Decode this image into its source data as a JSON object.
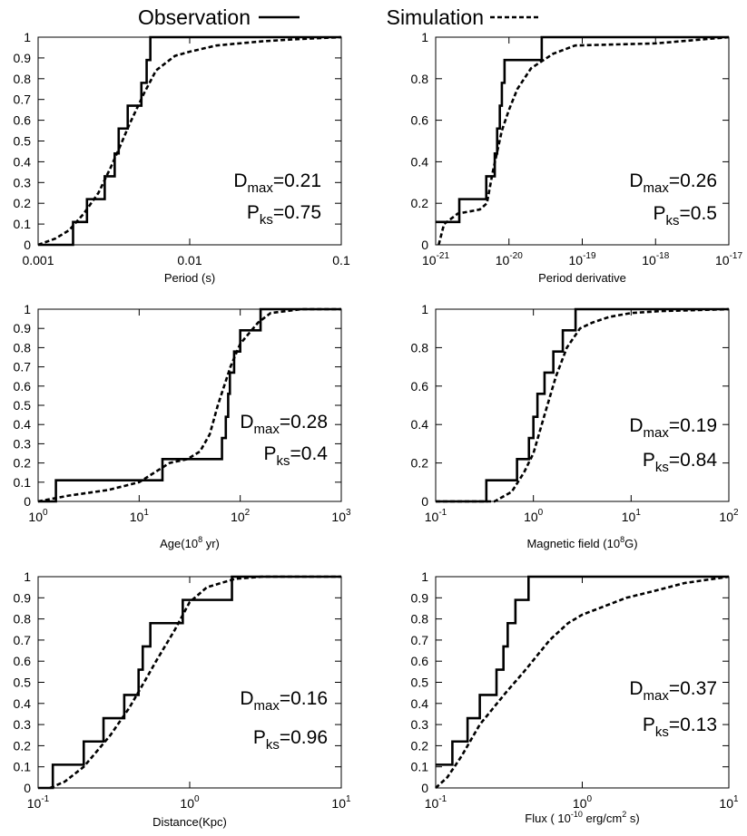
{
  "chart_data": [
    {
      "type": "line",
      "log_x": true,
      "xlabel": [
        {
          "text": "Period (s)"
        }
      ],
      "xlim": [
        0.001,
        0.1
      ],
      "xticks": [
        0.001,
        0.01,
        0.1
      ],
      "ylim": [
        0,
        1
      ],
      "yticks": [
        0,
        0.1,
        0.2,
        0.3,
        0.4,
        0.5,
        0.6,
        0.7,
        0.8,
        0.9,
        1
      ],
      "series": [
        {
          "name": "Observation",
          "style": "step",
          "dashed": false,
          "color": "#000000",
          "x": [
            0.001,
            0.0017,
            0.0021,
            0.00275,
            0.0032,
            0.0034,
            0.0039,
            0.0048,
            0.0052,
            0.0055,
            0.1
          ],
          "values": [
            0,
            0.11,
            0.22,
            0.33,
            0.44,
            0.56,
            0.67,
            0.78,
            0.89,
            1,
            1
          ]
        },
        {
          "name": "Simulation",
          "style": "line",
          "dashed": true,
          "color": "#000000",
          "x": [
            0.001,
            0.0013,
            0.0016,
            0.002,
            0.0025,
            0.003,
            0.0035,
            0.004,
            0.005,
            0.006,
            0.008,
            0.01,
            0.015,
            0.03,
            0.05,
            0.1
          ],
          "values": [
            0,
            0.03,
            0.07,
            0.15,
            0.25,
            0.37,
            0.48,
            0.58,
            0.73,
            0.84,
            0.91,
            0.93,
            0.96,
            0.98,
            0.99,
            1
          ]
        }
      ],
      "annotations": [
        {
          "symbol": "D",
          "subscript": "max",
          "text": "=0.21"
        },
        {
          "symbol": "P",
          "subscript": "ks",
          "text": "=0.75"
        }
      ]
    },
    {
      "type": "line",
      "log_x": true,
      "xlabel": [
        {
          "text": "Period derivative"
        }
      ],
      "xlim": [
        1e-21,
        1e-17
      ],
      "xticks": [
        {
          "value": 1e-21,
          "label": "10",
          "exponent": "-21"
        },
        {
          "value": 1e-20,
          "label": "10",
          "exponent": "-20"
        },
        {
          "value": 1e-19,
          "label": "10",
          "exponent": "-19"
        },
        {
          "value": 1e-18,
          "label": "10",
          "exponent": "-18"
        },
        {
          "value": 1e-17,
          "label": "10",
          "exponent": "-17"
        }
      ],
      "ylim": [
        0,
        1
      ],
      "yticks": [
        0,
        0.2,
        0.4,
        0.6,
        0.8,
        1
      ],
      "series": [
        {
          "name": "Observation",
          "style": "step",
          "dashed": false,
          "color": "#000000",
          "x": [
            1e-21,
            2.1e-21,
            4.9e-21,
            6.4e-21,
            6.9e-21,
            7.5e-21,
            8e-21,
            8.7e-21,
            2.8e-20,
            1e-17
          ],
          "values": [
            0.11,
            0.22,
            0.33,
            0.44,
            0.56,
            0.67,
            0.78,
            0.89,
            1,
            1
          ]
        },
        {
          "name": "Simulation",
          "style": "line",
          "dashed": true,
          "color": "#000000",
          "x": [
            1.1e-21,
            1.3e-21,
            2e-21,
            4e-21,
            5e-21,
            6e-21,
            8e-21,
            1e-20,
            1.3e-20,
            2e-20,
            4e-20,
            8e-20,
            1e-18,
            1e-17
          ],
          "values": [
            0,
            0.1,
            0.15,
            0.17,
            0.2,
            0.35,
            0.55,
            0.65,
            0.75,
            0.85,
            0.92,
            0.96,
            0.97,
            1
          ]
        }
      ],
      "annotations": [
        {
          "symbol": "D",
          "subscript": "max",
          "text": "=0.26"
        },
        {
          "symbol": "P",
          "subscript": "ks",
          "text": "=0.5"
        }
      ]
    },
    {
      "type": "line",
      "log_x": true,
      "xlabel": [
        {
          "text": "Age(10"
        },
        {
          "text": "8",
          "sup": true
        },
        {
          "text": " yr)"
        }
      ],
      "xlim": [
        1,
        1000
      ],
      "xticks": [
        {
          "value": 1,
          "label": "10",
          "exponent": "0"
        },
        {
          "value": 10,
          "label": "10",
          "exponent": "1"
        },
        {
          "value": 100,
          "label": "10",
          "exponent": "2"
        },
        {
          "value": 1000,
          "label": "10",
          "exponent": "3"
        }
      ],
      "ylim": [
        0,
        1
      ],
      "yticks": [
        0,
        0.1,
        0.2,
        0.3,
        0.4,
        0.5,
        0.6,
        0.7,
        0.8,
        0.9,
        1
      ],
      "series": [
        {
          "name": "Observation",
          "style": "step",
          "dashed": false,
          "color": "#000000",
          "x": [
            1,
            1.5,
            17,
            66,
            72,
            76,
            79,
            87,
            100,
            159,
            1000
          ],
          "values": [
            0,
            0.11,
            0.22,
            0.33,
            0.44,
            0.56,
            0.67,
            0.78,
            0.89,
            1,
            1
          ]
        },
        {
          "name": "Simulation",
          "style": "line",
          "dashed": true,
          "color": "#000000",
          "x": [
            1,
            2,
            5,
            10,
            20,
            30,
            40,
            50,
            60,
            80,
            100,
            150,
            200,
            400,
            1000
          ],
          "values": [
            0,
            0.03,
            0.06,
            0.1,
            0.2,
            0.22,
            0.26,
            0.35,
            0.5,
            0.7,
            0.82,
            0.93,
            0.98,
            1,
            1
          ]
        }
      ],
      "annotations": [
        {
          "symbol": "D",
          "subscript": "max",
          "text": "=0.28"
        },
        {
          "symbol": "P",
          "subscript": "ks",
          "text": "=0.4"
        }
      ]
    },
    {
      "type": "line",
      "log_x": true,
      "xlabel": [
        {
          "text": "Magnetic field (10"
        },
        {
          "text": "8",
          "sup": true
        },
        {
          "text": "G)"
        }
      ],
      "xlim": [
        0.1,
        100
      ],
      "xticks": [
        {
          "value": 0.1,
          "label": "10",
          "exponent": "-1"
        },
        {
          "value": 1,
          "label": "10",
          "exponent": "0"
        },
        {
          "value": 10,
          "label": "10",
          "exponent": "1"
        },
        {
          "value": 100,
          "label": "10",
          "exponent": "2"
        }
      ],
      "ylim": [
        0,
        1
      ],
      "yticks": [
        0,
        0.2,
        0.4,
        0.6,
        0.8,
        1
      ],
      "series": [
        {
          "name": "Observation",
          "style": "step",
          "dashed": false,
          "color": "#000000",
          "x": [
            0.1,
            0.33,
            0.68,
            0.9,
            1.0,
            1.1,
            1.3,
            1.6,
            2.0,
            2.7,
            100
          ],
          "values": [
            0,
            0.11,
            0.22,
            0.33,
            0.44,
            0.56,
            0.67,
            0.78,
            0.89,
            1,
            1
          ]
        },
        {
          "name": "Simulation",
          "style": "line",
          "dashed": true,
          "color": "#000000",
          "x": [
            0.1,
            0.4,
            0.6,
            0.8,
            1.0,
            1.3,
            1.7,
            2.2,
            3,
            4,
            6,
            10,
            20,
            100
          ],
          "values": [
            0,
            0,
            0.05,
            0.15,
            0.25,
            0.45,
            0.65,
            0.8,
            0.9,
            0.93,
            0.96,
            0.98,
            0.99,
            1
          ]
        }
      ],
      "annotations": [
        {
          "symbol": "D",
          "subscript": "max",
          "text": "=0.19"
        },
        {
          "symbol": "P",
          "subscript": "ks",
          "text": "=0.84"
        }
      ]
    },
    {
      "type": "line",
      "log_x": true,
      "xlabel": [
        {
          "text": "Distance(Kpc)"
        }
      ],
      "xlim": [
        0.1,
        10
      ],
      "xticks": [
        {
          "value": 0.1,
          "label": "10",
          "exponent": "-1"
        },
        {
          "value": 1,
          "label": "10",
          "exponent": "0"
        },
        {
          "value": 10,
          "label": "10",
          "exponent": "1"
        }
      ],
      "ylim": [
        0,
        1
      ],
      "yticks": [
        0,
        0.1,
        0.2,
        0.3,
        0.4,
        0.5,
        0.6,
        0.7,
        0.8,
        0.9,
        1
      ],
      "series": [
        {
          "name": "Observation",
          "style": "step",
          "dashed": false,
          "color": "#000000",
          "x": [
            0.1,
            0.125,
            0.2,
            0.27,
            0.37,
            0.46,
            0.49,
            0.55,
            0.9,
            1.9,
            10
          ],
          "values": [
            0,
            0.11,
            0.22,
            0.33,
            0.44,
            0.56,
            0.67,
            0.78,
            0.89,
            1,
            1
          ]
        },
        {
          "name": "Simulation",
          "style": "line",
          "dashed": true,
          "color": "#000000",
          "x": [
            0.12,
            0.15,
            0.2,
            0.3,
            0.4,
            0.5,
            0.6,
            0.8,
            1.0,
            1.3,
            2,
            3,
            10
          ],
          "values": [
            0,
            0.03,
            0.1,
            0.25,
            0.38,
            0.5,
            0.6,
            0.75,
            0.88,
            0.95,
            0.99,
            1,
            1
          ]
        }
      ],
      "annotations": [
        {
          "symbol": "D",
          "subscript": "max",
          "text": "=0.16"
        },
        {
          "symbol": "P",
          "subscript": "ks",
          "text": "=0.96"
        }
      ]
    },
    {
      "type": "line",
      "log_x": true,
      "xlabel": [
        {
          "text": "Flux ( 10"
        },
        {
          "text": "-10",
          "sup": true
        },
        {
          "text": " erg/cm"
        },
        {
          "text": "2",
          "sup": true
        },
        {
          "text": " s)"
        }
      ],
      "xlim": [
        0.1,
        10
      ],
      "xticks": [
        {
          "value": 0.1,
          "label": "10",
          "exponent": "-1"
        },
        {
          "value": 1,
          "label": "10",
          "exponent": "0"
        },
        {
          "value": 10,
          "label": "10",
          "exponent": "1"
        }
      ],
      "ylim": [
        0,
        1
      ],
      "yticks": [
        0,
        0.1,
        0.2,
        0.3,
        0.4,
        0.5,
        0.6,
        0.7,
        0.8,
        0.9,
        1
      ],
      "series": [
        {
          "name": "Observation",
          "style": "step",
          "dashed": false,
          "color": "#000000",
          "x": [
            0.1,
            0.13,
            0.165,
            0.2,
            0.26,
            0.29,
            0.31,
            0.35,
            0.43,
            10
          ],
          "values": [
            0.11,
            0.22,
            0.33,
            0.44,
            0.56,
            0.67,
            0.78,
            0.89,
            1,
            1
          ]
        },
        {
          "name": "Simulation",
          "style": "line",
          "dashed": true,
          "color": "#000000",
          "x": [
            0.1,
            0.12,
            0.15,
            0.2,
            0.3,
            0.4,
            0.6,
            0.8,
            1,
            2,
            3,
            5,
            10
          ],
          "values": [
            0,
            0.05,
            0.15,
            0.3,
            0.45,
            0.55,
            0.7,
            0.78,
            0.82,
            0.9,
            0.93,
            0.97,
            1
          ]
        }
      ],
      "annotations": [
        {
          "symbol": "D",
          "subscript": "max",
          "text": "=0.37"
        },
        {
          "symbol": "P",
          "subscript": "ks",
          "text": "=0.13"
        }
      ]
    }
  ]
}
